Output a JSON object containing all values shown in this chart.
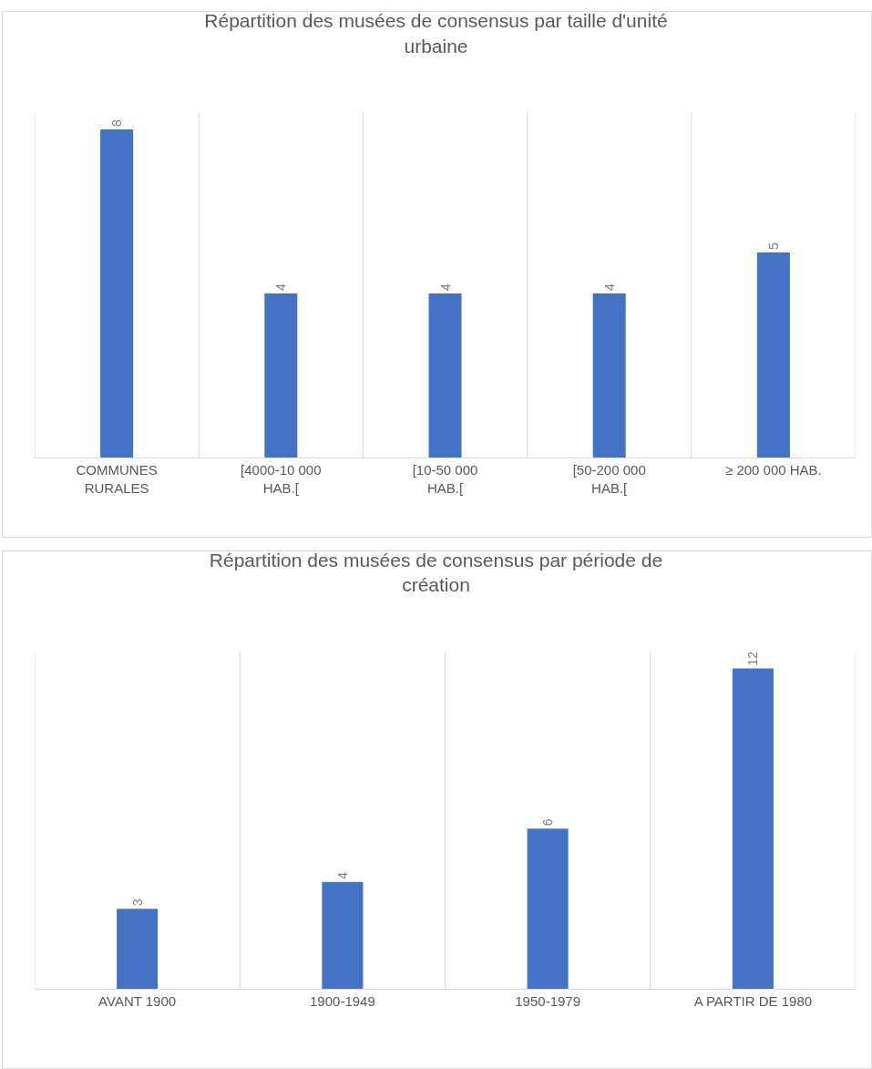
{
  "chart_data": [
    {
      "type": "bar",
      "title": "Répartition des musées de consensus par taille d'unité urbaine",
      "categories": [
        "COMMUNES RURALES",
        "[4000-10 000 HAB.[",
        "[10-50 000 HAB.[",
        "[50-200 000 HAB.[",
        "≥ 200 000 HAB."
      ],
      "values": [
        8,
        4,
        4,
        4,
        5
      ],
      "color": "#4472c4",
      "data_labels": true,
      "grid": "x",
      "tick_labels": "x",
      "legend": false
    },
    {
      "type": "bar",
      "title": "Répartition des musées de consensus par période de création",
      "categories": [
        "AVANT 1900",
        "1900-1949",
        "1950-1979",
        "A PARTIR DE 1980"
      ],
      "values": [
        3,
        4,
        6,
        12
      ],
      "color": "#4472c4",
      "data_labels": true,
      "grid": "x",
      "tick_labels": "x",
      "legend": false
    }
  ]
}
